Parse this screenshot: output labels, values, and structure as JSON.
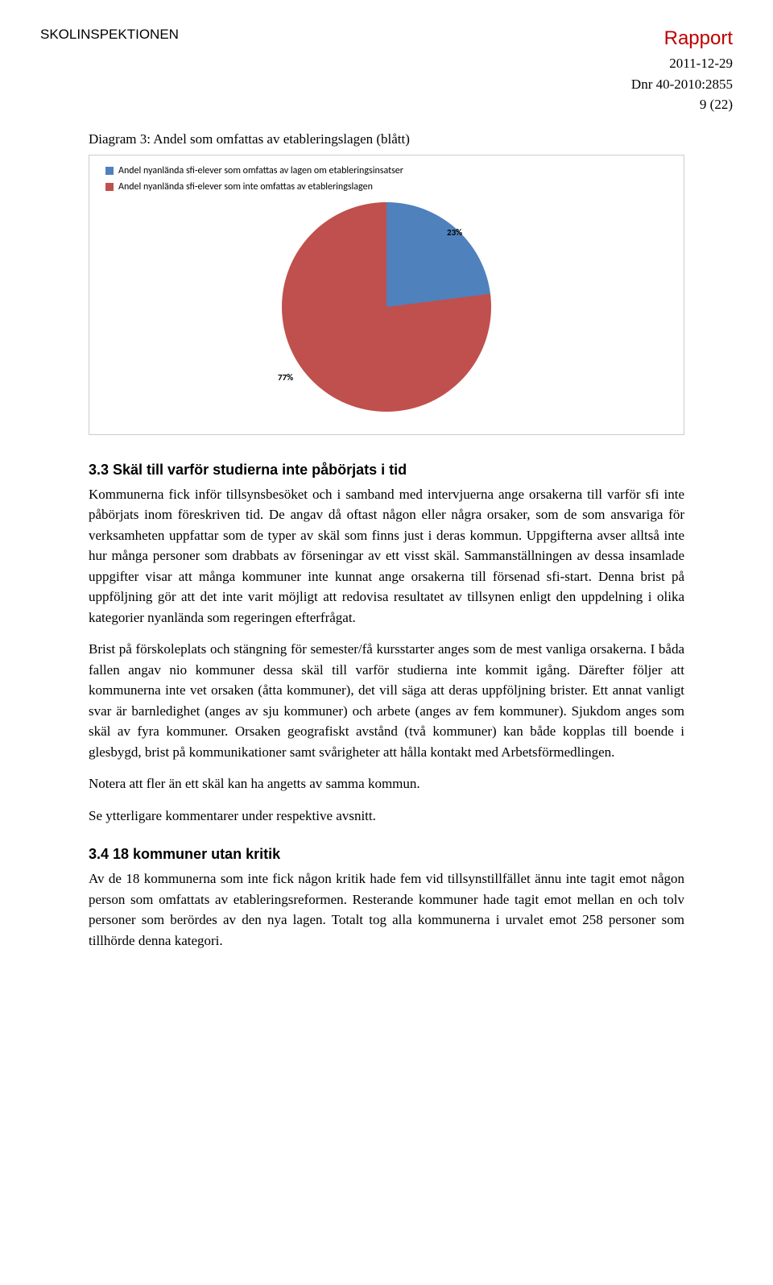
{
  "header": {
    "org": "SKOLINSPEKTIONEN",
    "report_label": "Rapport",
    "date": "2011-12-29",
    "dnr": "Dnr 40-2010:2855",
    "page": "9 (22)"
  },
  "chart": {
    "caption": "Diagram 3: Andel som omfattas av etableringslagen (blått)",
    "type": "pie",
    "slices": [
      {
        "label": "23%",
        "value": 23,
        "color": "#4f81bd",
        "legend": "Andel nyanlända sfi-elever som omfattas av lagen om etableringsinsatser"
      },
      {
        "label": "77%",
        "value": 77,
        "color": "#c0504d",
        "legend": "Andel nyanlända sfi-elever som inte omfattas av etableringslagen"
      }
    ],
    "background": "#ffffff",
    "border": "#cccccc",
    "label_fontsize": 11,
    "legend_fontsize": 12
  },
  "section33": {
    "heading": "3.3 Skäl till varför studierna inte påbörjats i tid",
    "p1": "Kommunerna fick inför tillsynsbesöket och i samband med intervjuerna ange orsakerna till varför sfi inte påbörjats inom föreskriven tid. De angav då oftast någon eller några orsaker, som de som ansvariga för verksamheten uppfattar som de typer av skäl som finns just i deras kommun. Uppgifterna avser alltså inte hur många personer som drabbats av förseningar av ett visst skäl. Sammanställningen av dessa insamlade uppgifter visar att många kommuner inte kunnat ange orsakerna till försenad sfi-start. Denna brist på uppföljning gör att det inte varit möjligt att redovisa resultatet av tillsynen enligt den uppdelning i olika kategorier nyanlända som regeringen efterfrågat.",
    "p2": "Brist på förskoleplats och stängning för semester/få kursstarter anges som de mest vanliga orsakerna. I båda fallen angav nio kommuner dessa skäl till varför studierna inte kommit igång. Därefter följer att kommunerna inte vet orsaken (åtta kommuner), det vill säga att deras uppföljning brister. Ett annat vanligt svar är barnledighet (anges av sju kommuner) och arbete (anges av fem kommuner). Sjukdom anges som skäl av fyra kommuner. Orsaken geografiskt avstånd (två kommuner) kan både kopplas till boende i glesbygd, brist på kommunikationer samt svårigheter att hålla kontakt med Arbetsförmedlingen.",
    "p3": "Notera att fler än ett skäl kan ha angetts av samma kommun.",
    "p4": "Se ytterligare kommentarer under respektive avsnitt."
  },
  "section34": {
    "heading": "3.4 18 kommuner utan kritik",
    "p1": "Av de 18 kommunerna som inte fick någon kritik hade fem vid tillsynstillfället ännu inte tagit emot någon person som omfattats av etableringsreformen. Resterande kommuner hade tagit emot mellan en och tolv personer som berördes av den nya lagen. Totalt tog alla kommunerna i urvalet emot 258 personer som tillhörde denna kategori."
  }
}
